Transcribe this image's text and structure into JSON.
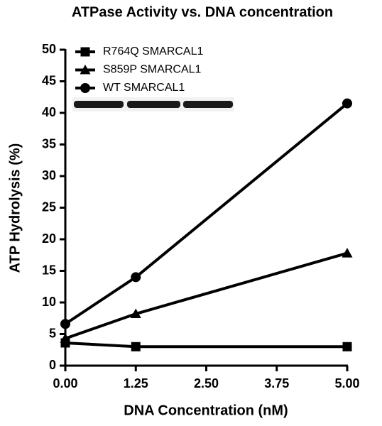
{
  "chart_data": {
    "type": "line",
    "title": "ATPase Activity vs. DNA concentration",
    "x_label": "DNA Concentration (nM)",
    "y_label": "ATP Hydrolysis (%)",
    "x": [
      0,
      1.25,
      5
    ],
    "series": [
      {
        "name": "R764Q SMARCAL1",
        "color": "#000000",
        "marker": "square",
        "values": [
          3.6,
          3.0,
          3.0
        ]
      },
      {
        "name": "S859P SMARCAL1",
        "color": "#000000",
        "marker": "triangle",
        "values": [
          4.3,
          8.2,
          17.8
        ]
      },
      {
        "name": "WT SMARCAL1",
        "color": "#000000",
        "marker": "circle",
        "values": [
          6.6,
          14.0,
          41.5
        ]
      }
    ],
    "xlim": [
      0,
      5
    ],
    "xticks": [
      {
        "value": 0,
        "label": "0.00"
      },
      {
        "value": 1.25,
        "label": "1.25"
      },
      {
        "value": 2.5,
        "label": "2.50"
      },
      {
        "value": 3.75,
        "label": "3.75"
      },
      {
        "value": 5,
        "label": "5.00"
      }
    ],
    "ylim": [
      0,
      50
    ],
    "yticks": [
      0,
      5,
      10,
      15,
      20,
      25,
      30,
      35,
      40,
      45,
      50
    ],
    "grid": false,
    "legend": "top-left"
  }
}
